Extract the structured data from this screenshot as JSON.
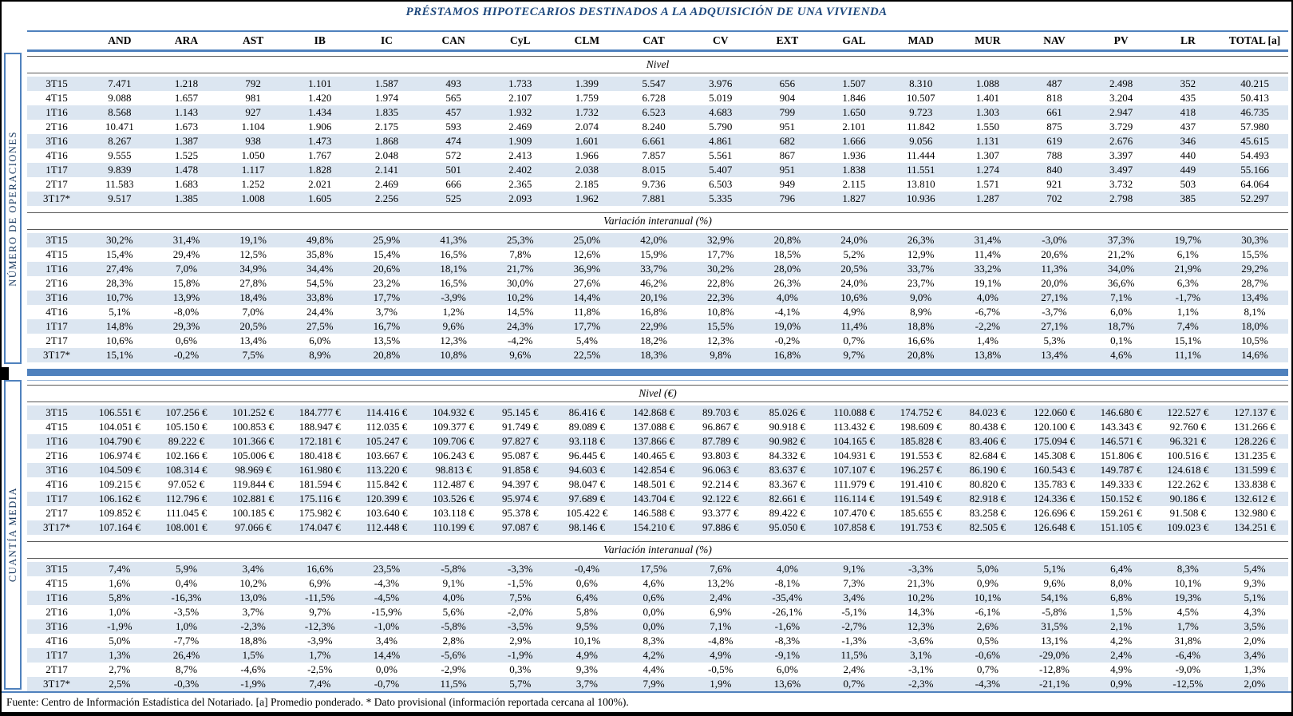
{
  "title": "PRÉSTAMOS HIPOTECARIOS DESTINADOS A LA ADQUISICIÓN DE UNA VIVIENDA",
  "columns": [
    "",
    "AND",
    "ARA",
    "AST",
    "IB",
    "IC",
    "CAN",
    "CyL",
    "CLM",
    "CAT",
    "CV",
    "EXT",
    "GAL",
    "MAD",
    "MUR",
    "NAV",
    "PV",
    "LR",
    "TOTAL [a]"
  ],
  "row_labels": [
    "3T15",
    "4T15",
    "1T16",
    "2T16",
    "3T16",
    "4T16",
    "1T17",
    "2T17",
    "3T17*"
  ],
  "groups": [
    {
      "label": "NÚMERO DE OPERACIONES"
    },
    {
      "label": "CUANTÍA MEDIA"
    }
  ],
  "sections": {
    "numero_nivel": {
      "subtitle": "Nivel",
      "rows": [
        [
          "3T15",
          "7.471",
          "1.218",
          "792",
          "1.101",
          "1.587",
          "493",
          "1.733",
          "1.399",
          "5.547",
          "3.976",
          "656",
          "1.507",
          "8.310",
          "1.088",
          "487",
          "2.498",
          "352",
          "40.215"
        ],
        [
          "4T15",
          "9.088",
          "1.657",
          "981",
          "1.420",
          "1.974",
          "565",
          "2.107",
          "1.759",
          "6.728",
          "5.019",
          "904",
          "1.846",
          "10.507",
          "1.401",
          "818",
          "3.204",
          "435",
          "50.413"
        ],
        [
          "1T16",
          "8.568",
          "1.143",
          "927",
          "1.434",
          "1.835",
          "457",
          "1.932",
          "1.732",
          "6.523",
          "4.683",
          "799",
          "1.650",
          "9.723",
          "1.303",
          "661",
          "2.947",
          "418",
          "46.735"
        ],
        [
          "2T16",
          "10.471",
          "1.673",
          "1.104",
          "1.906",
          "2.175",
          "593",
          "2.469",
          "2.074",
          "8.240",
          "5.790",
          "951",
          "2.101",
          "11.842",
          "1.550",
          "875",
          "3.729",
          "437",
          "57.980"
        ],
        [
          "3T16",
          "8.267",
          "1.387",
          "938",
          "1.473",
          "1.868",
          "474",
          "1.909",
          "1.601",
          "6.661",
          "4.861",
          "682",
          "1.666",
          "9.056",
          "1.131",
          "619",
          "2.676",
          "346",
          "45.615"
        ],
        [
          "4T16",
          "9.555",
          "1.525",
          "1.050",
          "1.767",
          "2.048",
          "572",
          "2.413",
          "1.966",
          "7.857",
          "5.561",
          "867",
          "1.936",
          "11.444",
          "1.307",
          "788",
          "3.397",
          "440",
          "54.493"
        ],
        [
          "1T17",
          "9.839",
          "1.478",
          "1.117",
          "1.828",
          "2.141",
          "501",
          "2.402",
          "2.038",
          "8.015",
          "5.407",
          "951",
          "1.838",
          "11.551",
          "1.274",
          "840",
          "3.497",
          "449",
          "55.166"
        ],
        [
          "2T17",
          "11.583",
          "1.683",
          "1.252",
          "2.021",
          "2.469",
          "666",
          "2.365",
          "2.185",
          "9.736",
          "6.503",
          "949",
          "2.115",
          "13.810",
          "1.571",
          "921",
          "3.732",
          "503",
          "64.064"
        ],
        [
          "3T17*",
          "9.517",
          "1.385",
          "1.008",
          "1.605",
          "2.256",
          "525",
          "2.093",
          "1.962",
          "7.881",
          "5.335",
          "796",
          "1.827",
          "10.936",
          "1.287",
          "702",
          "2.798",
          "385",
          "52.297"
        ]
      ]
    },
    "numero_var": {
      "subtitle": "Variación interanual (%)",
      "rows": [
        [
          "3T15",
          "30,2%",
          "31,4%",
          "19,1%",
          "49,8%",
          "25,9%",
          "41,3%",
          "25,3%",
          "25,0%",
          "42,0%",
          "32,9%",
          "20,8%",
          "24,0%",
          "26,3%",
          "31,4%",
          "-3,0%",
          "37,3%",
          "19,7%",
          "30,3%"
        ],
        [
          "4T15",
          "15,4%",
          "29,4%",
          "12,5%",
          "35,8%",
          "15,4%",
          "16,5%",
          "7,8%",
          "12,6%",
          "15,9%",
          "17,7%",
          "18,5%",
          "5,2%",
          "12,9%",
          "11,4%",
          "20,6%",
          "21,2%",
          "6,1%",
          "15,5%"
        ],
        [
          "1T16",
          "27,4%",
          "7,0%",
          "34,9%",
          "34,4%",
          "20,6%",
          "18,1%",
          "21,7%",
          "36,9%",
          "33,7%",
          "30,2%",
          "28,0%",
          "20,5%",
          "33,7%",
          "33,2%",
          "11,3%",
          "34,0%",
          "21,9%",
          "29,2%"
        ],
        [
          "2T16",
          "28,3%",
          "15,8%",
          "27,8%",
          "54,5%",
          "23,2%",
          "16,5%",
          "30,0%",
          "27,6%",
          "46,2%",
          "22,8%",
          "26,3%",
          "24,0%",
          "23,7%",
          "19,1%",
          "20,0%",
          "36,6%",
          "6,3%",
          "28,7%"
        ],
        [
          "3T16",
          "10,7%",
          "13,9%",
          "18,4%",
          "33,8%",
          "17,7%",
          "-3,9%",
          "10,2%",
          "14,4%",
          "20,1%",
          "22,3%",
          "4,0%",
          "10,6%",
          "9,0%",
          "4,0%",
          "27,1%",
          "7,1%",
          "-1,7%",
          "13,4%"
        ],
        [
          "4T16",
          "5,1%",
          "-8,0%",
          "7,0%",
          "24,4%",
          "3,7%",
          "1,2%",
          "14,5%",
          "11,8%",
          "16,8%",
          "10,8%",
          "-4,1%",
          "4,9%",
          "8,9%",
          "-6,7%",
          "-3,7%",
          "6,0%",
          "1,1%",
          "8,1%"
        ],
        [
          "1T17",
          "14,8%",
          "29,3%",
          "20,5%",
          "27,5%",
          "16,7%",
          "9,6%",
          "24,3%",
          "17,7%",
          "22,9%",
          "15,5%",
          "19,0%",
          "11,4%",
          "18,8%",
          "-2,2%",
          "27,1%",
          "18,7%",
          "7,4%",
          "18,0%"
        ],
        [
          "2T17",
          "10,6%",
          "0,6%",
          "13,4%",
          "6,0%",
          "13,5%",
          "12,3%",
          "-4,2%",
          "5,4%",
          "18,2%",
          "12,3%",
          "-0,2%",
          "0,7%",
          "16,6%",
          "1,4%",
          "5,3%",
          "0,1%",
          "15,1%",
          "10,5%"
        ],
        [
          "3T17*",
          "15,1%",
          "-0,2%",
          "7,5%",
          "8,9%",
          "20,8%",
          "10,8%",
          "9,6%",
          "22,5%",
          "18,3%",
          "9,8%",
          "16,8%",
          "9,7%",
          "20,8%",
          "13,8%",
          "13,4%",
          "4,6%",
          "11,1%",
          "14,6%"
        ]
      ]
    },
    "cuantia_nivel": {
      "subtitle": "Nivel (€)",
      "rows": [
        [
          "3T15",
          "106.551 €",
          "107.256 €",
          "101.252 €",
          "184.777 €",
          "114.416 €",
          "104.932 €",
          "95.145 €",
          "86.416 €",
          "142.868 €",
          "89.703 €",
          "85.026 €",
          "110.088 €",
          "174.752 €",
          "84.023 €",
          "122.060 €",
          "146.680 €",
          "122.527 €",
          "127.137 €"
        ],
        [
          "4T15",
          "104.051 €",
          "105.150 €",
          "100.853 €",
          "188.947 €",
          "112.035 €",
          "109.377 €",
          "91.749 €",
          "89.089 €",
          "137.088 €",
          "96.867 €",
          "90.918 €",
          "113.432 €",
          "198.609 €",
          "80.438 €",
          "120.100 €",
          "143.343 €",
          "92.760 €",
          "131.266 €"
        ],
        [
          "1T16",
          "104.790 €",
          "89.222 €",
          "101.366 €",
          "172.181 €",
          "105.247 €",
          "109.706 €",
          "97.827 €",
          "93.118 €",
          "137.866 €",
          "87.789 €",
          "90.982 €",
          "104.165 €",
          "185.828 €",
          "83.406 €",
          "175.094 €",
          "146.571 €",
          "96.321 €",
          "128.226 €"
        ],
        [
          "2T16",
          "106.974 €",
          "102.166 €",
          "105.006 €",
          "180.418 €",
          "103.667 €",
          "106.243 €",
          "95.087 €",
          "96.445 €",
          "140.465 €",
          "93.803 €",
          "84.332 €",
          "104.931 €",
          "191.553 €",
          "82.684 €",
          "145.308 €",
          "151.806 €",
          "100.516 €",
          "131.235 €"
        ],
        [
          "3T16",
          "104.509 €",
          "108.314 €",
          "98.969 €",
          "161.980 €",
          "113.220 €",
          "98.813 €",
          "91.858 €",
          "94.603 €",
          "142.854 €",
          "96.063 €",
          "83.637 €",
          "107.107 €",
          "196.257 €",
          "86.190 €",
          "160.543 €",
          "149.787 €",
          "124.618 €",
          "131.599 €"
        ],
        [
          "4T16",
          "109.215 €",
          "97.052 €",
          "119.844 €",
          "181.594 €",
          "115.842 €",
          "112.487 €",
          "94.397 €",
          "98.047 €",
          "148.501 €",
          "92.214 €",
          "83.367 €",
          "111.979 €",
          "191.410 €",
          "80.820 €",
          "135.783 €",
          "149.333 €",
          "122.262 €",
          "133.838 €"
        ],
        [
          "1T17",
          "106.162 €",
          "112.796 €",
          "102.881 €",
          "175.116 €",
          "120.399 €",
          "103.526 €",
          "95.974 €",
          "97.689 €",
          "143.704 €",
          "92.122 €",
          "82.661 €",
          "116.114 €",
          "191.549 €",
          "82.918 €",
          "124.336 €",
          "150.152 €",
          "90.186 €",
          "132.612 €"
        ],
        [
          "2T17",
          "109.852 €",
          "111.045 €",
          "100.185 €",
          "175.982 €",
          "103.640 €",
          "103.118 €",
          "95.378 €",
          "105.422 €",
          "146.588 €",
          "93.377 €",
          "89.422 €",
          "107.470 €",
          "185.655 €",
          "83.258 €",
          "126.696 €",
          "159.261 €",
          "91.508 €",
          "132.980 €"
        ],
        [
          "3T17*",
          "107.164 €",
          "108.001 €",
          "97.066 €",
          "174.047 €",
          "112.448 €",
          "110.199 €",
          "97.087 €",
          "98.146 €",
          "154.210 €",
          "97.886 €",
          "95.050 €",
          "107.858 €",
          "191.753 €",
          "82.505 €",
          "126.648 €",
          "151.105 €",
          "109.023 €",
          "134.251 €"
        ]
      ]
    },
    "cuantia_var": {
      "subtitle": "Variación interanual (%)",
      "rows": [
        [
          "3T15",
          "7,4%",
          "5,9%",
          "3,4%",
          "16,6%",
          "23,5%",
          "-5,8%",
          "-3,3%",
          "-0,4%",
          "17,5%",
          "7,6%",
          "4,0%",
          "9,1%",
          "-3,3%",
          "5,0%",
          "5,1%",
          "6,4%",
          "8,3%",
          "5,4%"
        ],
        [
          "4T15",
          "1,6%",
          "0,4%",
          "10,2%",
          "6,9%",
          "-4,3%",
          "9,1%",
          "-1,5%",
          "0,6%",
          "4,6%",
          "13,2%",
          "-8,1%",
          "7,3%",
          "21,3%",
          "0,9%",
          "9,6%",
          "8,0%",
          "10,1%",
          "9,3%"
        ],
        [
          "1T16",
          "5,8%",
          "-16,3%",
          "13,0%",
          "-11,5%",
          "-4,5%",
          "4,0%",
          "7,5%",
          "6,4%",
          "0,6%",
          "2,4%",
          "-35,4%",
          "3,4%",
          "10,2%",
          "10,1%",
          "54,1%",
          "6,8%",
          "19,3%",
          "5,1%"
        ],
        [
          "2T16",
          "1,0%",
          "-3,5%",
          "3,7%",
          "9,7%",
          "-15,9%",
          "5,6%",
          "-2,0%",
          "5,8%",
          "0,0%",
          "6,9%",
          "-26,1%",
          "-5,1%",
          "14,3%",
          "-6,1%",
          "-5,8%",
          "1,5%",
          "4,5%",
          "4,3%"
        ],
        [
          "3T16",
          "-1,9%",
          "1,0%",
          "-2,3%",
          "-12,3%",
          "-1,0%",
          "-5,8%",
          "-3,5%",
          "9,5%",
          "0,0%",
          "7,1%",
          "-1,6%",
          "-2,7%",
          "12,3%",
          "2,6%",
          "31,5%",
          "2,1%",
          "1,7%",
          "3,5%"
        ],
        [
          "4T16",
          "5,0%",
          "-7,7%",
          "18,8%",
          "-3,9%",
          "3,4%",
          "2,8%",
          "2,9%",
          "10,1%",
          "8,3%",
          "-4,8%",
          "-8,3%",
          "-1,3%",
          "-3,6%",
          "0,5%",
          "13,1%",
          "4,2%",
          "31,8%",
          "2,0%"
        ],
        [
          "1T17",
          "1,3%",
          "26,4%",
          "1,5%",
          "1,7%",
          "14,4%",
          "-5,6%",
          "-1,9%",
          "4,9%",
          "4,2%",
          "4,9%",
          "-9,1%",
          "11,5%",
          "3,1%",
          "-0,6%",
          "-29,0%",
          "2,4%",
          "-6,4%",
          "3,4%"
        ],
        [
          "2T17",
          "2,7%",
          "8,7%",
          "-4,6%",
          "-2,5%",
          "0,0%",
          "-2,9%",
          "0,3%",
          "9,3%",
          "4,4%",
          "-0,5%",
          "6,0%",
          "2,4%",
          "-3,1%",
          "0,7%",
          "-12,8%",
          "4,9%",
          "-9,0%",
          "1,3%"
        ],
        [
          "3T17*",
          "2,5%",
          "-0,3%",
          "-1,9%",
          "7,4%",
          "-0,7%",
          "11,5%",
          "5,7%",
          "3,7%",
          "7,9%",
          "1,9%",
          "13,6%",
          "0,7%",
          "-2,3%",
          "-4,3%",
          "-21,1%",
          "0,9%",
          "-12,5%",
          "2,0%"
        ]
      ]
    }
  },
  "footer": "Fuente: Centro de Información Estadística del Notariado. [a] Promedio ponderado. * Dato provisional (información reportada cercana al 100%).",
  "colors": {
    "accent": "#4F81BD",
    "stripe": "#DCE6F1",
    "title_text": "#1F497D",
    "rule_light": "#95B3D7",
    "band_rule": "#595959"
  }
}
